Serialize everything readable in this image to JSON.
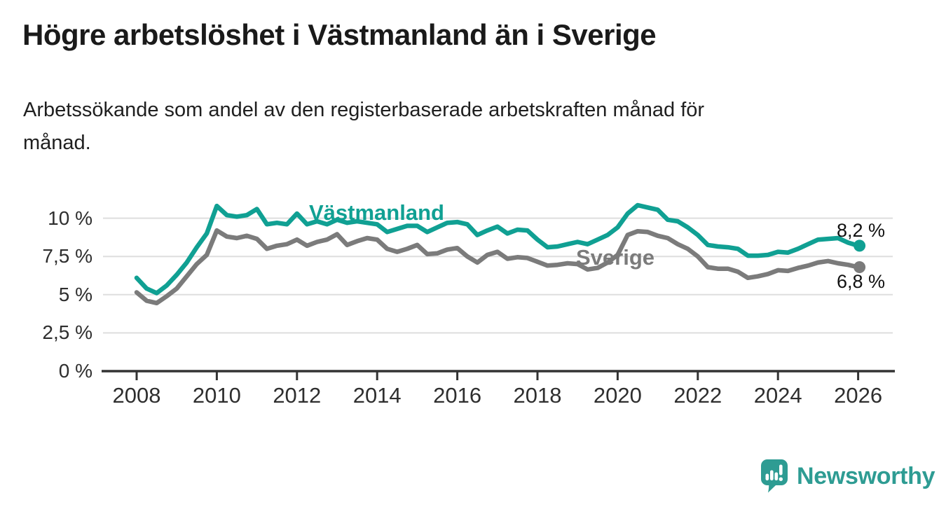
{
  "header": {
    "title": "Högre arbetslöshet i Västmanland än i Sverige",
    "subtitle_line1": "Arbetssökande som andel av den registerbaserade arbetskraften månad för",
    "subtitle_line2": "månad."
  },
  "chart_data": {
    "type": "line",
    "unit": "%",
    "grid": "horizontal",
    "legend_position": "inline-labels",
    "xlim": [
      2007.1,
      2026.9
    ],
    "ylim": [
      0,
      11.2
    ],
    "x_ticks": {
      "values": [
        2008,
        2010,
        2012,
        2014,
        2016,
        2018,
        2020,
        2022,
        2024,
        2026
      ],
      "labels": [
        "2008",
        "2010",
        "2012",
        "2014",
        "2016",
        "2018",
        "2020",
        "2022",
        "2024",
        "2026"
      ]
    },
    "y_ticks": {
      "values": [
        0,
        2.5,
        5,
        7.5,
        10
      ],
      "labels": [
        "0 %",
        "2,5 %",
        "5 %",
        "7,5 %",
        "10 %"
      ]
    },
    "x": [
      2008,
      2008.25,
      2008.5,
      2008.75,
      2009,
      2009.25,
      2009.5,
      2009.75,
      2010,
      2010.25,
      2010.5,
      2010.75,
      2011,
      2011.25,
      2011.5,
      2011.75,
      2012,
      2012.25,
      2012.5,
      2012.75,
      2013,
      2013.25,
      2013.5,
      2013.75,
      2014,
      2014.25,
      2014.5,
      2014.75,
      2015,
      2015.25,
      2015.5,
      2015.75,
      2016,
      2016.25,
      2016.5,
      2016.75,
      2017,
      2017.25,
      2017.5,
      2017.75,
      2018,
      2018.25,
      2018.5,
      2018.75,
      2019,
      2019.25,
      2019.5,
      2019.75,
      2020,
      2020.25,
      2020.5,
      2020.75,
      2021,
      2021.25,
      2021.5,
      2021.75,
      2022,
      2022.25,
      2022.5,
      2022.75,
      2023,
      2023.25,
      2023.5,
      2023.75,
      2024,
      2024.25,
      2024.5,
      2024.75,
      2025,
      2025.25,
      2025.5,
      2025.75,
      2026
    ],
    "series": [
      {
        "id": "vastmanland",
        "name": "Västmanland",
        "color": "#10A093",
        "end_value": 8.2,
        "end_label": "8,2 %",
        "values": [
          6.1,
          5.4,
          5.1,
          5.6,
          6.3,
          7.1,
          8.1,
          9.0,
          10.8,
          10.2,
          10.1,
          10.2,
          10.6,
          9.6,
          9.7,
          9.6,
          10.3,
          9.6,
          9.8,
          9.6,
          9.9,
          9.7,
          9.8,
          9.7,
          9.6,
          9.1,
          9.3,
          9.5,
          9.5,
          9.1,
          9.4,
          9.7,
          9.75,
          9.6,
          8.9,
          9.2,
          9.45,
          9.0,
          9.25,
          9.2,
          8.6,
          8.1,
          8.15,
          8.3,
          8.45,
          8.3,
          8.6,
          8.9,
          9.4,
          10.3,
          10.85,
          10.7,
          10.55,
          9.9,
          9.8,
          9.4,
          8.9,
          8.25,
          8.15,
          8.1,
          8.0,
          7.55,
          7.55,
          7.6,
          7.8,
          7.75,
          8.0,
          8.3,
          8.6,
          8.65,
          8.7,
          8.4,
          8.2
        ]
      },
      {
        "id": "sverige",
        "name": "Sverige",
        "color": "#7B7B7B",
        "end_value": 6.8,
        "end_label": "6,8 %",
        "values": [
          5.15,
          4.6,
          4.45,
          4.9,
          5.4,
          6.2,
          7.0,
          7.6,
          9.2,
          8.8,
          8.7,
          8.85,
          8.65,
          8.0,
          8.2,
          8.3,
          8.6,
          8.2,
          8.45,
          8.6,
          8.95,
          8.25,
          8.5,
          8.7,
          8.6,
          8.0,
          7.8,
          8.0,
          8.25,
          7.65,
          7.7,
          7.95,
          8.05,
          7.5,
          7.1,
          7.6,
          7.8,
          7.35,
          7.45,
          7.4,
          7.15,
          6.9,
          6.95,
          7.05,
          7.0,
          6.65,
          6.75,
          7.1,
          7.6,
          8.9,
          9.15,
          9.1,
          8.85,
          8.7,
          8.3,
          8.0,
          7.5,
          6.8,
          6.7,
          6.7,
          6.5,
          6.1,
          6.2,
          6.35,
          6.6,
          6.55,
          6.75,
          6.9,
          7.1,
          7.2,
          7.05,
          6.95,
          6.8
        ]
      }
    ]
  },
  "footer": {
    "brand": "Newsworthy",
    "brand_color": "#2E9C93",
    "logo_icon": "newsworthy-speech-bubble-bar-chart-icon"
  },
  "colors": {
    "background": "#FFFFFF",
    "grid": "#DEDEDE",
    "axis": "#333333",
    "title": "#1A1A1A",
    "tick_text": "#2E2E2E",
    "value_label_text": "#111111"
  }
}
